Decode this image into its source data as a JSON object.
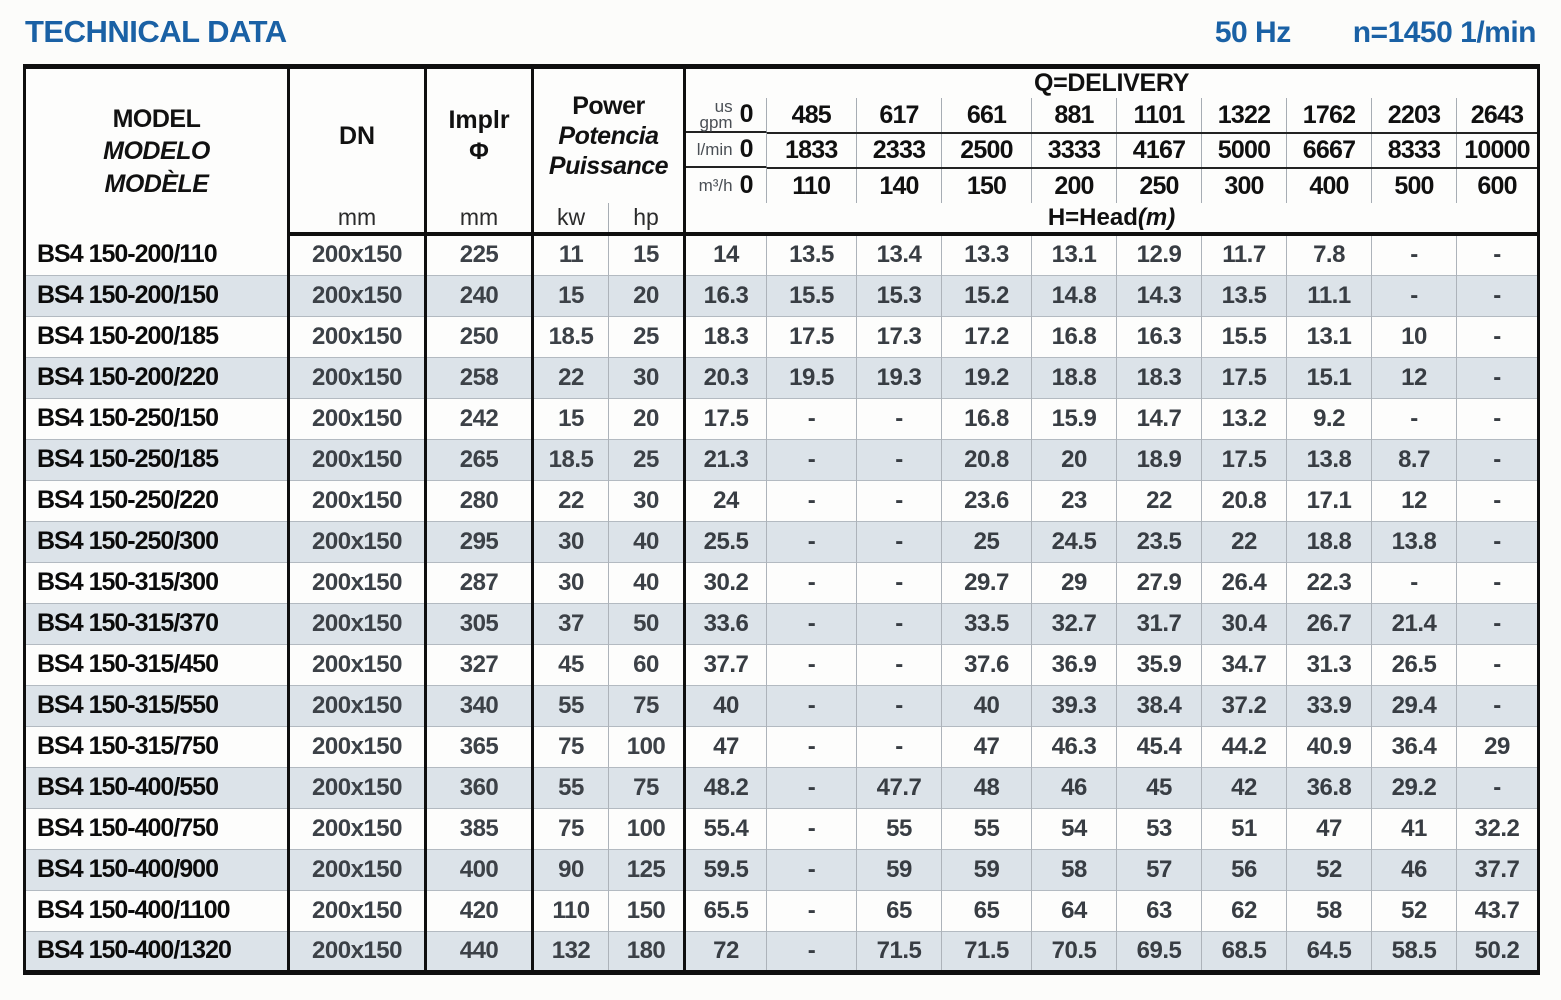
{
  "page": {
    "title": "TECHNICAL DATA",
    "frequency": "50 Hz",
    "speed": "n=1450 1/min"
  },
  "colors": {
    "accent_blue": "#1a61a5",
    "row_stripe": "#dce3e9",
    "border_black": "#0f0f0f"
  },
  "table": {
    "header": {
      "model_lines": [
        "MODEL",
        "MODELO",
        "MODÈLE"
      ],
      "dn": {
        "label": "DN",
        "unit": "mm"
      },
      "impeller": {
        "label": "Implr",
        "symbol": "Φ",
        "unit": "mm"
      },
      "power": {
        "lines": [
          "Power",
          "Potencia",
          "Puissance"
        ],
        "units": [
          "kw",
          "hp"
        ]
      },
      "delivery": {
        "title": "Q=DELIVERY",
        "unit_rows": [
          {
            "unit": "us\ngpm",
            "values": [
              "0",
              "485",
              "617",
              "661",
              "881",
              "1101",
              "1322",
              "1762",
              "2203",
              "2643"
            ]
          },
          {
            "unit": "l/min",
            "values": [
              "0",
              "1833",
              "2333",
              "2500",
              "3333",
              "4167",
              "5000",
              "6667",
              "8333",
              "10000"
            ]
          },
          {
            "unit": "m³/h",
            "values": [
              "0",
              "110",
              "140",
              "150",
              "200",
              "250",
              "300",
              "400",
              "500",
              "600"
            ]
          }
        ],
        "head_label": "H=Head",
        "head_unit": "(m)"
      }
    },
    "rows": [
      {
        "model": "BS4 150-200/110",
        "dn": "200x150",
        "impeller": "225",
        "kw": "11",
        "hp": "15",
        "head": [
          "14",
          "13.5",
          "13.4",
          "13.3",
          "13.1",
          "12.9",
          "11.7",
          "7.8",
          "-",
          "-"
        ]
      },
      {
        "model": "BS4 150-200/150",
        "dn": "200x150",
        "impeller": "240",
        "kw": "15",
        "hp": "20",
        "head": [
          "16.3",
          "15.5",
          "15.3",
          "15.2",
          "14.8",
          "14.3",
          "13.5",
          "11.1",
          "-",
          "-"
        ]
      },
      {
        "model": "BS4 150-200/185",
        "dn": "200x150",
        "impeller": "250",
        "kw": "18.5",
        "hp": "25",
        "head": [
          "18.3",
          "17.5",
          "17.3",
          "17.2",
          "16.8",
          "16.3",
          "15.5",
          "13.1",
          "10",
          "-"
        ]
      },
      {
        "model": "BS4 150-200/220",
        "dn": "200x150",
        "impeller": "258",
        "kw": "22",
        "hp": "30",
        "head": [
          "20.3",
          "19.5",
          "19.3",
          "19.2",
          "18.8",
          "18.3",
          "17.5",
          "15.1",
          "12",
          "-"
        ]
      },
      {
        "model": "BS4 150-250/150",
        "dn": "200x150",
        "impeller": "242",
        "kw": "15",
        "hp": "20",
        "head": [
          "17.5",
          "-",
          "-",
          "16.8",
          "15.9",
          "14.7",
          "13.2",
          "9.2",
          "-",
          "-"
        ]
      },
      {
        "model": "BS4 150-250/185",
        "dn": "200x150",
        "impeller": "265",
        "kw": "18.5",
        "hp": "25",
        "head": [
          "21.3",
          "-",
          "-",
          "20.8",
          "20",
          "18.9",
          "17.5",
          "13.8",
          "8.7",
          "-"
        ]
      },
      {
        "model": "BS4 150-250/220",
        "dn": "200x150",
        "impeller": "280",
        "kw": "22",
        "hp": "30",
        "head": [
          "24",
          "-",
          "-",
          "23.6",
          "23",
          "22",
          "20.8",
          "17.1",
          "12",
          "-"
        ]
      },
      {
        "model": "BS4 150-250/300",
        "dn": "200x150",
        "impeller": "295",
        "kw": "30",
        "hp": "40",
        "head": [
          "25.5",
          "-",
          "-",
          "25",
          "24.5",
          "23.5",
          "22",
          "18.8",
          "13.8",
          "-"
        ]
      },
      {
        "model": "BS4 150-315/300",
        "dn": "200x150",
        "impeller": "287",
        "kw": "30",
        "hp": "40",
        "head": [
          "30.2",
          "-",
          "-",
          "29.7",
          "29",
          "27.9",
          "26.4",
          "22.3",
          "-",
          "-"
        ]
      },
      {
        "model": "BS4 150-315/370",
        "dn": "200x150",
        "impeller": "305",
        "kw": "37",
        "hp": "50",
        "head": [
          "33.6",
          "-",
          "-",
          "33.5",
          "32.7",
          "31.7",
          "30.4",
          "26.7",
          "21.4",
          "-"
        ]
      },
      {
        "model": "BS4 150-315/450",
        "dn": "200x150",
        "impeller": "327",
        "kw": "45",
        "hp": "60",
        "head": [
          "37.7",
          "-",
          "-",
          "37.6",
          "36.9",
          "35.9",
          "34.7",
          "31.3",
          "26.5",
          "-"
        ]
      },
      {
        "model": "BS4 150-315/550",
        "dn": "200x150",
        "impeller": "340",
        "kw": "55",
        "hp": "75",
        "head": [
          "40",
          "-",
          "-",
          "40",
          "39.3",
          "38.4",
          "37.2",
          "33.9",
          "29.4",
          "-"
        ]
      },
      {
        "model": "BS4 150-315/750",
        "dn": "200x150",
        "impeller": "365",
        "kw": "75",
        "hp": "100",
        "head": [
          "47",
          "-",
          "-",
          "47",
          "46.3",
          "45.4",
          "44.2",
          "40.9",
          "36.4",
          "29"
        ]
      },
      {
        "model": "BS4 150-400/550",
        "dn": "200x150",
        "impeller": "360",
        "kw": "55",
        "hp": "75",
        "head": [
          "48.2",
          "-",
          "47.7",
          "48",
          "46",
          "45",
          "42",
          "36.8",
          "29.2",
          "-"
        ]
      },
      {
        "model": "BS4 150-400/750",
        "dn": "200x150",
        "impeller": "385",
        "kw": "75",
        "hp": "100",
        "head": [
          "55.4",
          "-",
          "55",
          "55",
          "54",
          "53",
          "51",
          "47",
          "41",
          "32.2"
        ]
      },
      {
        "model": "BS4 150-400/900",
        "dn": "200x150",
        "impeller": "400",
        "kw": "90",
        "hp": "125",
        "head": [
          "59.5",
          "-",
          "59",
          "59",
          "58",
          "57",
          "56",
          "52",
          "46",
          "37.7"
        ]
      },
      {
        "model": "BS4 150-400/1100",
        "dn": "200x150",
        "impeller": "420",
        "kw": "110",
        "hp": "150",
        "head": [
          "65.5",
          "-",
          "65",
          "65",
          "64",
          "63",
          "62",
          "58",
          "52",
          "43.7"
        ]
      },
      {
        "model": "BS4 150-400/1320",
        "dn": "200x150",
        "impeller": "440",
        "kw": "132",
        "hp": "180",
        "head": [
          "72",
          "-",
          "71.5",
          "71.5",
          "70.5",
          "69.5",
          "68.5",
          "64.5",
          "58.5",
          "50.2"
        ]
      }
    ]
  }
}
